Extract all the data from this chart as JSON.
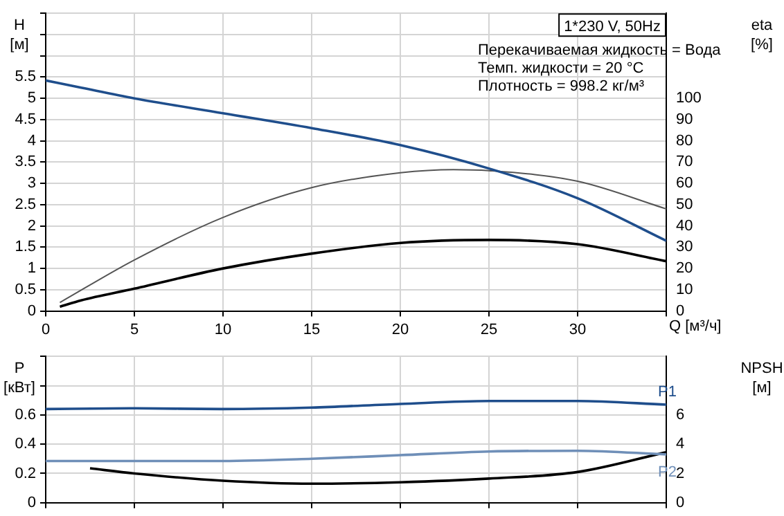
{
  "chart_data": [
    {
      "type": "line",
      "title": "1*230 V, 50Hz",
      "ylabel": "H [м]",
      "y2label": "eta [%]",
      "xlabel": "Q [м³/ч]",
      "annotations": [
        "Перекачиваемая жидкость = Вода",
        "Темп. жидкости = 20 °C",
        "Плотность = 998.2 кг/м³"
      ],
      "xlim": [
        0,
        35
      ],
      "xticks": [
        0,
        5,
        10,
        15,
        20,
        25,
        30,
        {
          "value": 35,
          "label": null
        }
      ],
      "ylim": [
        0,
        7
      ],
      "yticks": [
        0,
        0.5,
        1,
        1.5,
        2,
        2.5,
        3,
        3.5,
        4,
        4.5,
        5,
        5.5,
        {
          "value": 6,
          "label": null
        },
        {
          "value": 6.5,
          "label": null
        },
        {
          "value": 7,
          "label": null
        }
      ],
      "y2lim": [
        0,
        140
      ],
      "y2ticks": [
        0,
        10,
        20,
        30,
        40,
        50,
        60,
        70,
        80,
        90,
        100
      ],
      "grid": true,
      "legend": false,
      "marker": "none",
      "line_style": "solid",
      "series": [
        {
          "color": "#1f4e8c",
          "x": [
            0,
            2,
            5,
            10,
            15,
            20,
            25,
            30,
            35
          ],
          "values": [
            5.42,
            5.25,
            5.0,
            4.65,
            4.3,
            3.9,
            3.35,
            2.65,
            1.65
          ]
        },
        {
          "color": "#555555",
          "axis": "y2",
          "x": [
            0.8,
            5,
            10,
            15,
            20,
            23,
            25,
            30,
            35
          ],
          "values": [
            4,
            24,
            44,
            58,
            65,
            66.5,
            66,
            61,
            48
          ]
        },
        {
          "color": "#000000",
          "axis": "y2",
          "x": [
            0.8,
            2,
            5,
            10,
            15,
            20,
            25,
            30,
            35
          ],
          "values": [
            2,
            5,
            10.5,
            20,
            27,
            32,
            33.4,
            31.4,
            23.4
          ]
        }
      ]
    },
    {
      "type": "line",
      "ylabel": "P [кВт]",
      "y2label": "NPSH [м]",
      "xlim": [
        0,
        35
      ],
      "xticks": [
        0,
        5,
        10,
        15,
        20,
        25,
        30,
        35
      ],
      "ylim": [
        0,
        1
      ],
      "yticks": [
        0,
        0.2,
        0.4,
        0.6,
        {
          "value": 0.8,
          "label": null
        },
        {
          "value": 1,
          "label": null
        }
      ],
      "y2lim": [
        0,
        10
      ],
      "y2ticks": [
        0,
        2,
        4,
        6
      ],
      "grid": true,
      "legend": false,
      "marker": "none",
      "line_style": "solid",
      "tick_labels": "y",
      "series": [
        {
          "name": "P1",
          "color": "#1f4e8c",
          "x": [
            0,
            5,
            10,
            15,
            20,
            25,
            30,
            35
          ],
          "values": [
            0.64,
            0.645,
            0.64,
            0.65,
            0.675,
            0.695,
            0.695,
            0.67
          ]
        },
        {
          "name": "P2",
          "color": "#6f8fb8",
          "x": [
            0,
            5,
            10,
            15,
            20,
            25,
            30,
            35
          ],
          "values": [
            0.285,
            0.285,
            0.285,
            0.3,
            0.325,
            0.35,
            0.355,
            0.33
          ]
        },
        {
          "color": "#000000",
          "axis": "y2",
          "x": [
            2.5,
            5,
            10,
            15,
            20,
            25,
            30,
            35
          ],
          "values": [
            2.35,
            2.0,
            1.5,
            1.3,
            1.4,
            1.65,
            2.1,
            3.45
          ]
        }
      ]
    }
  ]
}
